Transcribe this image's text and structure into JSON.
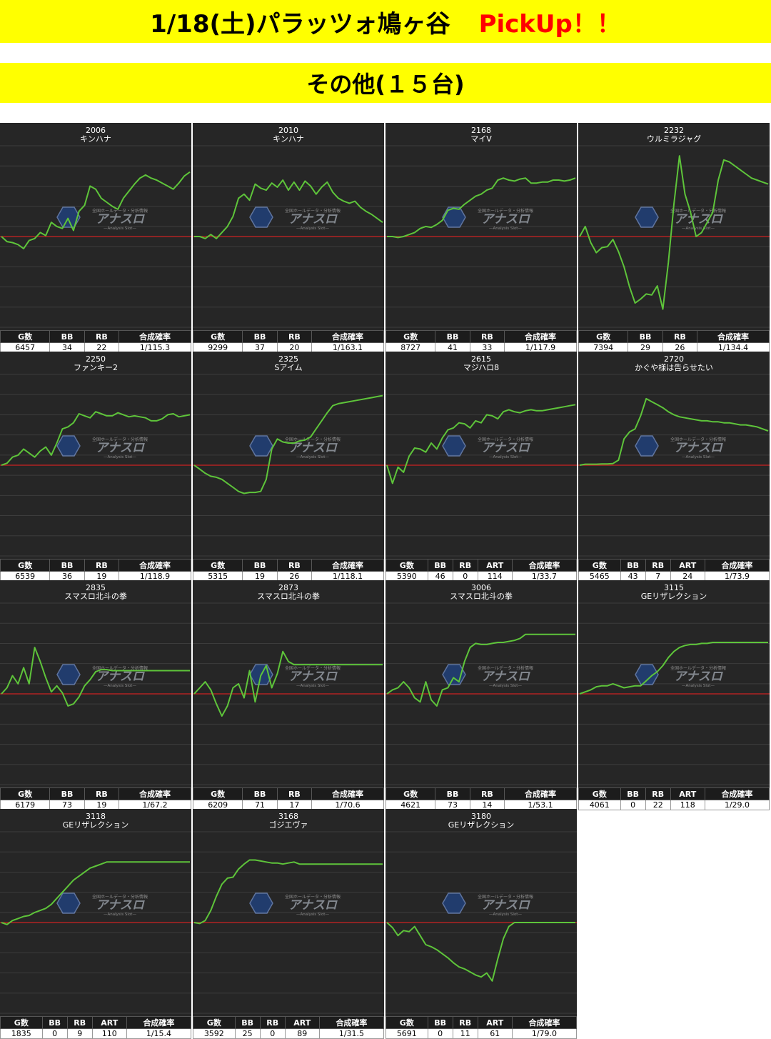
{
  "header": {
    "title": "1/18(土)パラッツォ鳩ヶ谷",
    "pickup": "PickUp！！",
    "subtitle": "その他(１５台)"
  },
  "colors": {
    "banner": "#ffff00",
    "pickup": "#ff0000",
    "line": "#5ec43a",
    "zero": "#cc2222",
    "panel": "#262626"
  },
  "watermark": {
    "top": "全国ホールデータ・分析情報",
    "brand": "アナスロ",
    "sub": "—Analysis Slot—"
  },
  "chart_data": [
    {
      "type": "line",
      "machine_no": "2006",
      "name": "キンハナ",
      "headers": [
        "G数",
        "BB",
        "RB",
        "合成確率"
      ],
      "stats": [
        "6457",
        "34",
        "22",
        "1/115.3"
      ],
      "ylim": [
        -4500,
        4500
      ],
      "x": [
        0,
        1,
        2,
        3,
        4,
        5,
        6,
        7,
        8,
        9,
        10,
        11,
        12,
        13,
        14,
        15,
        16,
        17,
        18,
        19,
        20,
        21,
        22,
        23,
        24,
        25,
        26,
        27,
        28,
        29,
        30,
        31,
        32,
        33,
        34
      ],
      "values": [
        0,
        -250,
        -300,
        -400,
        -600,
        -200,
        -100,
        200,
        50,
        700,
        500,
        400,
        900,
        300,
        1250,
        1550,
        2500,
        2350,
        1900,
        1700,
        1500,
        1350,
        1900,
        2250,
        2600,
        2900,
        3050,
        2900,
        2800,
        2650,
        2500,
        2350,
        2650,
        3000,
        3200
      ]
    },
    {
      "type": "line",
      "machine_no": "2010",
      "name": "キンハナ",
      "headers": [
        "G数",
        "BB",
        "RB",
        "合成確率"
      ],
      "stats": [
        "9299",
        "37",
        "20",
        "1/163.1"
      ],
      "ylim": [
        -4500,
        4500
      ],
      "x": [
        0,
        1,
        2,
        3,
        4,
        5,
        6,
        7,
        8,
        9,
        10,
        11,
        12,
        13,
        14,
        15,
        16,
        17,
        18,
        19,
        20,
        21,
        22,
        23,
        24,
        25,
        26,
        27,
        28,
        29,
        30,
        31,
        32,
        33,
        34
      ],
      "values": [
        0,
        0,
        -100,
        100,
        -100,
        200,
        500,
        1000,
        1900,
        2100,
        1800,
        2600,
        2400,
        2300,
        2650,
        2450,
        2800,
        2300,
        2700,
        2300,
        2750,
        2500,
        2100,
        2450,
        2700,
        2200,
        1900,
        1750,
        1650,
        1750,
        1450,
        1250,
        1100,
        900,
        700
      ]
    },
    {
      "type": "line",
      "machine_no": "2168",
      "name": "マイV",
      "headers": [
        "G数",
        "BB",
        "RB",
        "合成確率"
      ],
      "stats": [
        "8727",
        "41",
        "33",
        "1/117.9"
      ],
      "ylim": [
        -4500,
        4500
      ],
      "x": [
        0,
        1,
        2,
        3,
        4,
        5,
        6,
        7,
        8,
        9,
        10,
        11,
        12,
        13,
        14,
        15,
        16,
        17,
        18,
        19,
        20,
        21,
        22,
        23,
        24,
        25,
        26,
        27,
        28,
        29,
        30,
        31,
        32,
        33,
        34
      ],
      "values": [
        0,
        0,
        -50,
        0,
        100,
        200,
        400,
        500,
        450,
        600,
        800,
        1300,
        1400,
        1350,
        1600,
        1800,
        2000,
        2100,
        2300,
        2400,
        2800,
        2900,
        2800,
        2750,
        2850,
        2900,
        2650,
        2650,
        2700,
        2700,
        2800,
        2800,
        2750,
        2800,
        2900
      ]
    },
    {
      "type": "line",
      "machine_no": "2232",
      "name": "ウルミラジャグ",
      "headers": [
        "G数",
        "BB",
        "RB",
        "合成確率"
      ],
      "stats": [
        "7394",
        "29",
        "26",
        "1/134.4"
      ],
      "ylim": [
        -4500,
        4500
      ],
      "x": [
        0,
        1,
        2,
        3,
        4,
        5,
        6,
        7,
        8,
        9,
        10,
        11,
        12,
        13,
        14,
        15,
        16,
        17,
        18,
        19,
        20,
        21,
        22,
        23,
        24,
        25,
        26,
        27,
        28,
        29,
        30,
        31,
        32,
        33,
        34
      ],
      "values": [
        0,
        500,
        -300,
        -800,
        -550,
        -500,
        -150,
        -750,
        -1500,
        -2500,
        -3300,
        -3100,
        -2850,
        -2900,
        -2450,
        -3600,
        -1300,
        1600,
        4000,
        2100,
        1200,
        0,
        200,
        700,
        1200,
        2800,
        3800,
        3700,
        3500,
        3300,
        3100,
        2900,
        2800,
        2700,
        2600
      ]
    },
    {
      "type": "line",
      "machine_no": "2250",
      "name": "ファンキー2",
      "headers": [
        "G数",
        "BB",
        "RB",
        "合成確率"
      ],
      "stats": [
        "6539",
        "36",
        "19",
        "1/118.9"
      ],
      "ylim": [
        -4500,
        4500
      ],
      "x": [
        0,
        1,
        2,
        3,
        4,
        5,
        6,
        7,
        8,
        9,
        10,
        11,
        12,
        13,
        14,
        15,
        16,
        17,
        18,
        19,
        20,
        21,
        22,
        23,
        24,
        25,
        26,
        27,
        28,
        29,
        30,
        31,
        32,
        33,
        34
      ],
      "values": [
        0,
        100,
        400,
        500,
        800,
        600,
        400,
        700,
        900,
        500,
        1100,
        1800,
        1900,
        2100,
        2550,
        2450,
        2350,
        2650,
        2550,
        2450,
        2450,
        2600,
        2500,
        2400,
        2450,
        2400,
        2350,
        2200,
        2200,
        2300,
        2500,
        2550,
        2400,
        2450,
        2500
      ]
    },
    {
      "type": "line",
      "machine_no": "2325",
      "name": "Sアイム",
      "headers": [
        "G数",
        "BB",
        "RB",
        "合成確率"
      ],
      "stats": [
        "5315",
        "19",
        "26",
        "1/118.1"
      ],
      "ylim": [
        -4500,
        4500
      ],
      "x": [
        0,
        1,
        2,
        3,
        4,
        5,
        6,
        7,
        8,
        9,
        10,
        11,
        12,
        13,
        14,
        15,
        16,
        17,
        18,
        19,
        20,
        21,
        22,
        23,
        24,
        25,
        26,
        27,
        28,
        29,
        30,
        31,
        32,
        33,
        34
      ],
      "values": [
        0,
        -200,
        -400,
        -550,
        -600,
        -700,
        -900,
        -1100,
        -1300,
        -1400,
        -1350,
        -1350,
        -1300,
        -700,
        800,
        1300,
        1150,
        1100,
        1100,
        1200,
        1250,
        1400,
        1800,
        2200,
        2600,
        2950,
        3050,
        3100,
        3150,
        3200,
        3250,
        3300,
        3350,
        3400,
        3450
      ]
    },
    {
      "type": "line",
      "machine_no": "2615",
      "name": "マジハロ8",
      "headers": [
        "G数",
        "BB",
        "RB",
        "ART",
        "合成確率"
      ],
      "stats": [
        "5390",
        "46",
        "0",
        "114",
        "1/33.7"
      ],
      "ylim": [
        -4500,
        4500
      ],
      "x": [
        0,
        1,
        2,
        3,
        4,
        5,
        6,
        7,
        8,
        9,
        10,
        11,
        12,
        13,
        14,
        15,
        16,
        17,
        18,
        19,
        20,
        21,
        22,
        23,
        24,
        25,
        26,
        27,
        28,
        29,
        30,
        31,
        32,
        33,
        34
      ],
      "values": [
        0,
        -900,
        -100,
        -350,
        450,
        850,
        800,
        650,
        1100,
        800,
        1350,
        1750,
        1850,
        2100,
        2050,
        1850,
        2200,
        2100,
        2500,
        2450,
        2300,
        2650,
        2750,
        2650,
        2600,
        2700,
        2750,
        2700,
        2700,
        2750,
        2800,
        2850,
        2900,
        2950,
        3000
      ]
    },
    {
      "type": "line",
      "machine_no": "2720",
      "name": "かぐや様は告らせたい",
      "headers": [
        "G数",
        "BB",
        "RB",
        "ART",
        "合成確率"
      ],
      "stats": [
        "5465",
        "43",
        "7",
        "24",
        "1/73.9"
      ],
      "ylim": [
        -4500,
        4500
      ],
      "x": [
        0,
        1,
        2,
        3,
        4,
        5,
        6,
        7,
        8,
        9,
        10,
        11,
        12,
        13,
        14,
        15,
        16,
        17,
        18,
        19,
        20,
        21,
        22,
        23,
        24,
        25,
        26,
        27,
        28,
        29,
        30,
        31,
        32,
        33,
        34
      ],
      "values": [
        0,
        50,
        50,
        50,
        60,
        60,
        80,
        250,
        1300,
        1650,
        1800,
        2450,
        3300,
        3150,
        3000,
        2850,
        2650,
        2500,
        2400,
        2350,
        2300,
        2250,
        2200,
        2200,
        2150,
        2150,
        2100,
        2100,
        2050,
        2000,
        2000,
        1950,
        1900,
        1800,
        1700
      ]
    },
    {
      "type": "line",
      "machine_no": "2835",
      "name": "スマスロ北斗の拳",
      "headers": [
        "G数",
        "BB",
        "RB",
        "合成確率"
      ],
      "stats": [
        "6179",
        "73",
        "19",
        "1/67.2"
      ],
      "ylim": [
        -4500,
        4500
      ],
      "x": [
        0,
        1,
        2,
        3,
        4,
        5,
        6,
        7,
        8,
        9,
        10,
        11,
        12,
        13,
        14,
        15,
        16,
        17,
        18,
        19,
        20,
        21,
        22,
        23,
        24,
        25,
        26,
        27,
        28,
        29,
        30,
        31,
        32,
        33,
        34
      ],
      "values": [
        0,
        300,
        900,
        500,
        1300,
        500,
        2300,
        1600,
        800,
        100,
        400,
        50,
        -600,
        -500,
        -150,
        400,
        700,
        1100,
        1200,
        1200,
        1150,
        1150,
        1150,
        1150,
        1150,
        1150,
        1150,
        1150,
        1150,
        1150,
        1150,
        1150,
        1150,
        1150,
        1150
      ]
    },
    {
      "type": "line",
      "machine_no": "2873",
      "name": "スマスロ北斗の拳",
      "headers": [
        "G数",
        "BB",
        "RB",
        "合成確率"
      ],
      "stats": [
        "6209",
        "71",
        "17",
        "1/70.6"
      ],
      "ylim": [
        -4500,
        4500
      ],
      "x": [
        0,
        1,
        2,
        3,
        4,
        5,
        6,
        7,
        8,
        9,
        10,
        11,
        12,
        13,
        14,
        15,
        16,
        17,
        18,
        19,
        20,
        21,
        22,
        23,
        24,
        25,
        26,
        27,
        28,
        29,
        30,
        31,
        32,
        33,
        34
      ],
      "values": [
        0,
        300,
        600,
        200,
        -500,
        -1100,
        -600,
        300,
        500,
        -200,
        1150,
        -400,
        900,
        1400,
        300,
        1000,
        2100,
        1600,
        1450,
        1450,
        1450,
        1450,
        1450,
        1450,
        1450,
        1450,
        1450,
        1450,
        1450,
        1450,
        1450,
        1450,
        1450,
        1450,
        1450
      ]
    },
    {
      "type": "line",
      "machine_no": "3006",
      "name": "スマスロ北斗の拳",
      "headers": [
        "G数",
        "BB",
        "RB",
        "合成確率"
      ],
      "stats": [
        "4621",
        "73",
        "14",
        "1/53.1"
      ],
      "ylim": [
        -4500,
        4500
      ],
      "x": [
        0,
        1,
        2,
        3,
        4,
        5,
        6,
        7,
        8,
        9,
        10,
        11,
        12,
        13,
        14,
        15,
        16,
        17,
        18,
        19,
        20,
        21,
        22,
        23,
        24,
        25,
        26,
        27,
        28,
        29,
        30,
        31,
        32,
        33,
        34
      ],
      "values": [
        0,
        200,
        300,
        600,
        300,
        -200,
        -400,
        600,
        -300,
        -600,
        200,
        300,
        800,
        600,
        1600,
        2300,
        2500,
        2450,
        2450,
        2500,
        2550,
        2550,
        2600,
        2650,
        2750,
        2950,
        2950,
        2950,
        2950,
        2950,
        2950,
        2950,
        2950,
        2950,
        2950
      ]
    },
    {
      "type": "line",
      "machine_no": "3115",
      "name": "GEリザレクション",
      "headers": [
        "G数",
        "BB",
        "RB",
        "ART",
        "合成確率"
      ],
      "stats": [
        "4061",
        "0",
        "22",
        "118",
        "1/29.0"
      ],
      "ylim": [
        -4500,
        4500
      ],
      "x": [
        0,
        1,
        2,
        3,
        4,
        5,
        6,
        7,
        8,
        9,
        10,
        11,
        12,
        13,
        14,
        15,
        16,
        17,
        18,
        19,
        20,
        21,
        22,
        23,
        24,
        25,
        26,
        27,
        28,
        29,
        30,
        31,
        32,
        33,
        34
      ],
      "values": [
        0,
        100,
        200,
        350,
        400,
        400,
        500,
        400,
        300,
        350,
        400,
        400,
        650,
        900,
        1100,
        1400,
        1800,
        2100,
        2300,
        2400,
        2450,
        2450,
        2500,
        2500,
        2550,
        2550,
        2550,
        2550,
        2550,
        2550,
        2550,
        2550,
        2550,
        2550,
        2550
      ]
    },
    {
      "type": "line",
      "machine_no": "3118",
      "name": "GEリザレクション",
      "headers": [
        "G数",
        "BB",
        "RB",
        "ART",
        "合成確率"
      ],
      "stats": [
        "1835",
        "0",
        "9",
        "110",
        "1/15.4"
      ],
      "ylim": [
        -4500,
        4500
      ],
      "x": [
        0,
        1,
        2,
        3,
        4,
        5,
        6,
        7,
        8,
        9,
        10,
        11,
        12,
        13,
        14,
        15,
        16,
        17,
        18,
        19,
        20,
        21,
        22,
        23,
        24,
        25,
        26,
        27,
        28,
        29,
        30,
        31,
        32,
        33,
        34
      ],
      "values": [
        0,
        -100,
        100,
        200,
        300,
        350,
        500,
        600,
        700,
        900,
        1200,
        1500,
        1800,
        2100,
        2300,
        2500,
        2700,
        2800,
        2900,
        3000,
        3000,
        3000,
        3000,
        3000,
        3000,
        3000,
        3000,
        3000,
        3000,
        3000,
        3000,
        3000,
        3000,
        3000,
        3000
      ]
    },
    {
      "type": "line",
      "machine_no": "3168",
      "name": "ゴジエヴァ",
      "headers": [
        "G数",
        "BB",
        "RB",
        "ART",
        "合成確率"
      ],
      "stats": [
        "3592",
        "25",
        "0",
        "89",
        "1/31.5"
      ],
      "ylim": [
        -4500,
        4500
      ],
      "x": [
        0,
        1,
        2,
        3,
        4,
        5,
        6,
        7,
        8,
        9,
        10,
        11,
        12,
        13,
        14,
        15,
        16,
        17,
        18,
        19,
        20,
        21,
        22,
        23,
        24,
        25,
        26,
        27,
        28,
        29,
        30,
        31,
        32,
        33,
        34
      ],
      "values": [
        0,
        -50,
        100,
        600,
        1300,
        1900,
        2200,
        2250,
        2650,
        2900,
        3100,
        3100,
        3050,
        3000,
        2950,
        2950,
        2900,
        2950,
        3000,
        2900,
        2900,
        2900,
        2900,
        2900,
        2900,
        2900,
        2900,
        2900,
        2900,
        2900,
        2900,
        2900,
        2900,
        2900,
        2900
      ]
    },
    {
      "type": "line",
      "machine_no": "3180",
      "name": "GEリザレクション",
      "headers": [
        "G数",
        "BB",
        "RB",
        "ART",
        "合成確率"
      ],
      "stats": [
        "5691",
        "0",
        "11",
        "61",
        "1/79.0"
      ],
      "ylim": [
        -4500,
        4500
      ],
      "x": [
        0,
        1,
        2,
        3,
        4,
        5,
        6,
        7,
        8,
        9,
        10,
        11,
        12,
        13,
        14,
        15,
        16,
        17,
        18,
        19,
        20,
        21,
        22,
        23,
        24,
        25,
        26,
        27,
        28,
        29,
        30,
        31,
        32,
        33,
        34
      ],
      "values": [
        0,
        -250,
        -650,
        -400,
        -450,
        -200,
        -650,
        -1100,
        -1200,
        -1350,
        -1550,
        -1750,
        -2000,
        -2200,
        -2300,
        -2450,
        -2600,
        -2700,
        -2500,
        -2900,
        -1800,
        -800,
        -200,
        0,
        0,
        0,
        0,
        0,
        0,
        0,
        0,
        0,
        0,
        0,
        0
      ]
    }
  ]
}
